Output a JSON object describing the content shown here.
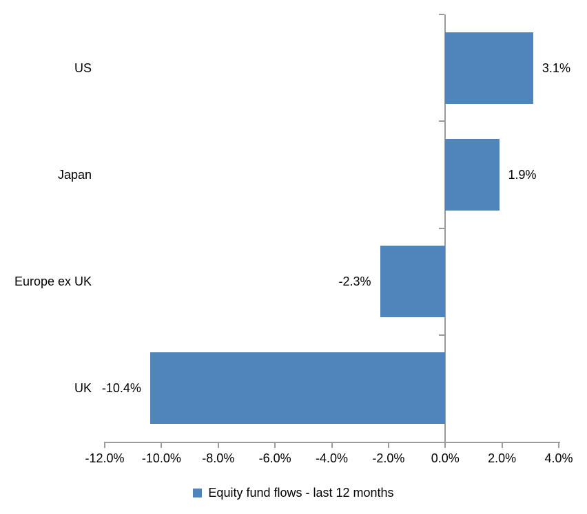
{
  "chart_data": {
    "type": "bar",
    "orientation": "horizontal",
    "title": "",
    "categories": [
      "US",
      "Japan",
      "Europe ex UK",
      "UK"
    ],
    "values": [
      3.1,
      1.9,
      -2.3,
      -10.4
    ],
    "data_labels": [
      "3.1%",
      "1.9%",
      "-2.3%",
      "-10.4%"
    ],
    "series_name": "Equity fund flows - last 12 months",
    "xlim": [
      -12,
      4
    ],
    "x_ticks": [
      -12,
      -10,
      -8,
      -6,
      -4,
      -2,
      0,
      2,
      4
    ],
    "x_tick_labels": [
      "-12.0%",
      "-10.0%",
      "-8.0%",
      "-6.0%",
      "-4.0%",
      "-2.0%",
      "0.0%",
      "2.0%",
      "4.0%"
    ],
    "grid": false,
    "legend_position": "bottom",
    "colors": {
      "bar": "#4e86bc",
      "axis": "#9b9b9b",
      "text": "#000000",
      "background": "#ffffff"
    }
  },
  "legend": {
    "label": "Equity fund flows - last 12 months"
  }
}
